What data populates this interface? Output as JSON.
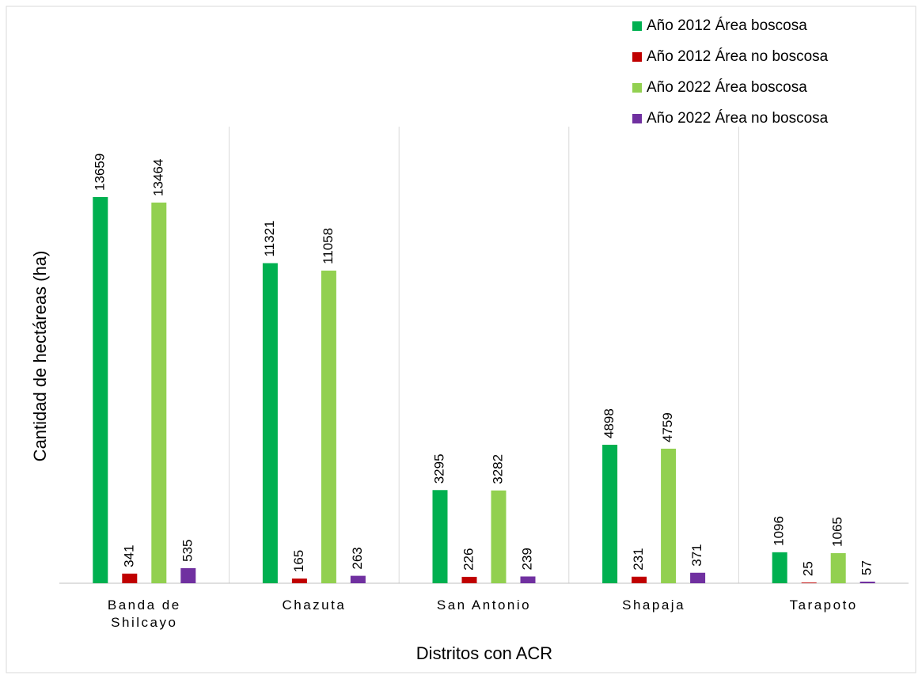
{
  "chart_data": {
    "type": "bar",
    "x_label": "Distritos con  ACR",
    "y_label": "Cantidad de hectáreas (ha)",
    "categories": [
      "Banda de\nShilcayo",
      "Chazuta",
      "San Antonio",
      "Shapaja",
      "Tarapoto"
    ],
    "series": [
      {
        "name": "Año 2012 Área boscosa",
        "color": "#00b050",
        "values": [
          13659,
          11321,
          3295,
          4898,
          1096
        ]
      },
      {
        "name": "Año 2012 Área no boscosa",
        "color": "#c00000",
        "values": [
          341,
          165,
          226,
          231,
          25
        ]
      },
      {
        "name": "Año 2022 Área boscosa",
        "color": "#92d050",
        "values": [
          13464,
          11058,
          3282,
          4759,
          1065
        ]
      },
      {
        "name": "Año 2022 Área no boscosa",
        "color": "#7030a0",
        "values": [
          535,
          263,
          239,
          371,
          57
        ]
      }
    ],
    "ylim": [
      0,
      16150
    ],
    "legend": "top-right"
  }
}
